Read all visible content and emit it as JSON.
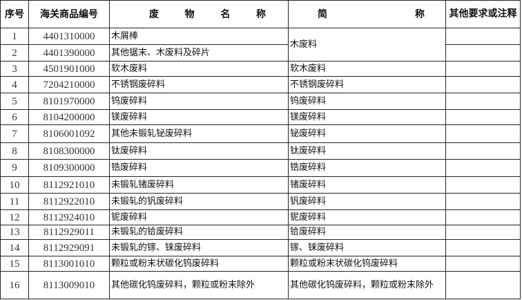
{
  "header": {
    "seq": "序号",
    "code": "海关商品编号",
    "name_chars": [
      "废",
      "物",
      "名",
      "称"
    ],
    "short_chars": [
      "简",
      "称"
    ],
    "note": "其他要求或注释"
  },
  "rows": [
    {
      "seq": "1",
      "code": "4401310000",
      "name": "木屑棒",
      "short": "木废料",
      "note": ""
    },
    {
      "seq": "2",
      "code": "4401390000",
      "name": "其他锯末、木废料及碎片",
      "short": "",
      "note": ""
    },
    {
      "seq": "3",
      "code": "4501901000",
      "name": "软木废料",
      "short": "软木废料",
      "note": ""
    },
    {
      "seq": "4",
      "code": "7204210000",
      "name": "不锈钢废碎料",
      "short": "不锈钢废碎料",
      "note": ""
    },
    {
      "seq": "5",
      "code": "8101970000",
      "name": "钨废碎料",
      "short": "钨废碎料",
      "note": ""
    },
    {
      "seq": "6",
      "code": "8104200000",
      "name": "镁废碎料",
      "short": "镁废碎料",
      "note": ""
    },
    {
      "seq": "7",
      "code": "8106001092",
      "name": "其他未锻轧铋废碎料",
      "short": "铋废碎料",
      "note": ""
    },
    {
      "seq": "8",
      "code": "8108300000",
      "name": "钛废碎料",
      "short": "钛废碎料",
      "note": ""
    },
    {
      "seq": "9",
      "code": "8109300000",
      "name": "锆废碎料",
      "short": "锆废碎料",
      "note": ""
    },
    {
      "seq": "10",
      "code": "8112921010",
      "name": "未锻轧锗废碎料",
      "short": "锗废碎料",
      "note": ""
    },
    {
      "seq": "11",
      "code": "8112922010",
      "name": "未锻轧的钒废碎料",
      "short": "钒废碎料",
      "note": ""
    },
    {
      "seq": "12",
      "code": "8112924010",
      "name": "铌废碎料",
      "short": "铌废碎料",
      "note": ""
    },
    {
      "seq": "13",
      "code": "8112929011",
      "name": "未锻轧的铪废碎料",
      "short": "铪废碎料",
      "note": ""
    },
    {
      "seq": "14",
      "code": "8112929091",
      "name": "未锻轧的镓、铼废碎料",
      "short": "镓、铼废碎料",
      "note": ""
    },
    {
      "seq": "15",
      "code": "8113001010",
      "name": "颗粒或粉末状碳化钨废碎料",
      "short": "颗粒或粉末状碳化钨废碎料",
      "note": ""
    },
    {
      "seq": "16",
      "code": "8113009010",
      "name": "其他碳化钨废碎料，颗粒或粉末除外",
      "short": "其他碳化钨废碎料，颗粒或粉末除外",
      "note": ""
    }
  ]
}
